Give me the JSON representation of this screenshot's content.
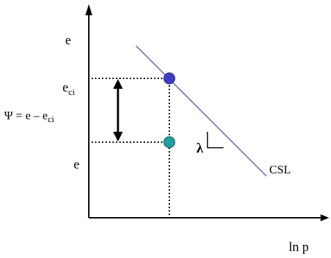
{
  "labels": {
    "y_axis": "e",
    "e_ci_base": "e",
    "e_ci_sub": "ci",
    "e_lower": "e",
    "psi_lhs": "Ψ = e – e",
    "psi_sub": "ci",
    "lambda": "λ",
    "line": "CSL",
    "x_axis": "ln p"
  },
  "colors": {
    "axis": "#000000",
    "csl_line": "#5a5cc6",
    "upper_point": "#3d3dc8",
    "lower_point": "#1f9e9e",
    "guide": "#000000",
    "arrow": "#000000"
  }
}
